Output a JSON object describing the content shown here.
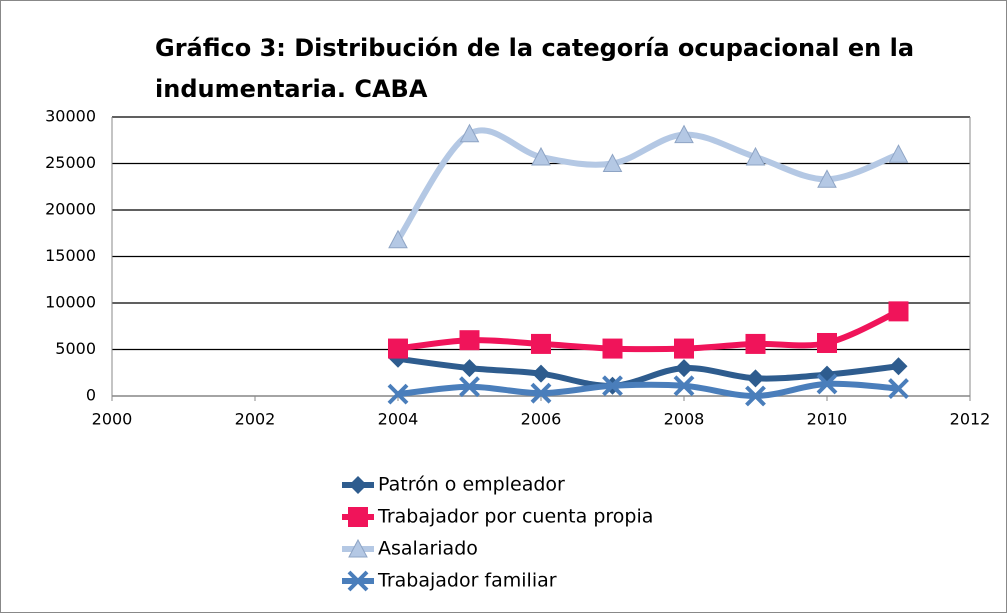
{
  "chart_data": {
    "type": "scatter",
    "title": [
      "Gráfico 3: Distribución de la categoría ocupacional en la",
      "indumentaria. CABA"
    ],
    "x": [
      2004,
      2005,
      2006,
      2007,
      2008,
      2009,
      2010,
      2011
    ],
    "series": [
      {
        "name": "Patrón o empleador",
        "color": "#2e5c8e",
        "marker": "diamond",
        "values": [
          4000,
          3000,
          2400,
          1100,
          3000,
          1900,
          2300,
          3200
        ]
      },
      {
        "name": "Trabajador por cuenta propia",
        "color": "#f0145a",
        "marker": "square",
        "values": [
          5100,
          6000,
          5600,
          5100,
          5100,
          5600,
          5700,
          9100
        ]
      },
      {
        "name": "Asalariado",
        "color": "#b4c8e4",
        "marker": "triangle",
        "values": [
          16800,
          28200,
          25700,
          25000,
          28100,
          25700,
          23300,
          26000
        ]
      },
      {
        "name": "Trabajador familiar",
        "color": "#4a7ebb",
        "marker": "x",
        "values": [
          200,
          1000,
          300,
          1100,
          1100,
          0,
          1300,
          800
        ]
      }
    ],
    "xlim": [
      2000,
      2012
    ],
    "xticks": [
      2000,
      2002,
      2004,
      2006,
      2008,
      2010,
      2012
    ],
    "ylim": [
      0,
      30000
    ],
    "yticks": [
      0,
      5000,
      10000,
      15000,
      20000,
      25000,
      30000
    ],
    "grid": true,
    "legend": "bottom"
  }
}
